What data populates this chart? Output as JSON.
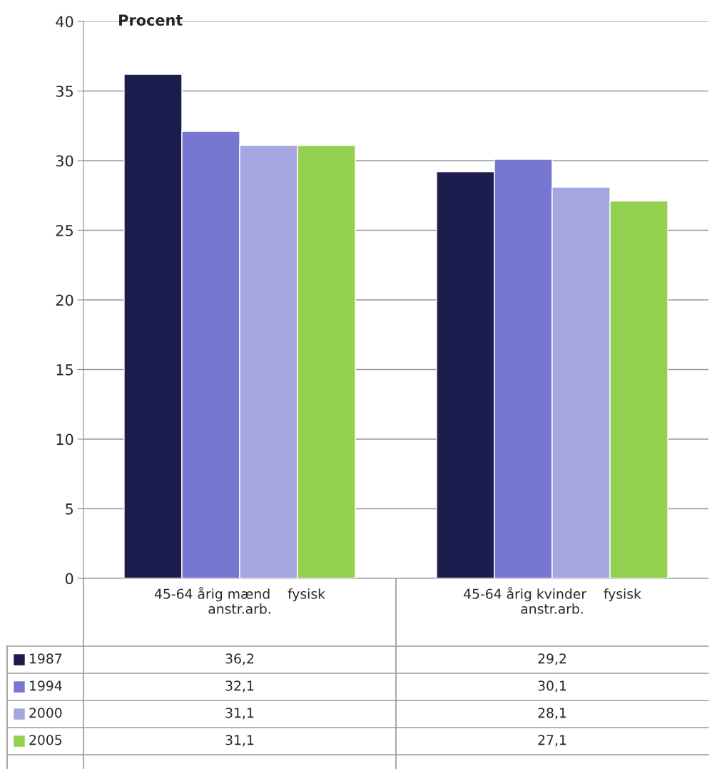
{
  "chart_data": {
    "type": "bar",
    "ylabel": "Procent",
    "categories": [
      "45-64 årig mænd    fysisk\nanstr.arb.",
      "45-64 årig kvinder    fysisk\nanstr.arb."
    ],
    "series": [
      {
        "name": "1987",
        "color": "#1c1c4e",
        "values": [
          36.2,
          29.2
        ],
        "value_labels": [
          "36,2",
          "29,2"
        ]
      },
      {
        "name": "1994",
        "color": "#7777d1",
        "values": [
          32.1,
          30.1
        ],
        "value_labels": [
          "32,1",
          "30,1"
        ]
      },
      {
        "name": "2000",
        "color": "#a5a5e0",
        "values": [
          31.1,
          28.1
        ],
        "value_labels": [
          "31,1",
          "28,1"
        ]
      },
      {
        "name": "2005",
        "color": "#94d050",
        "values": [
          31.1,
          27.1
        ],
        "value_labels": [
          "31,1",
          "27,1"
        ]
      }
    ],
    "ylim": [
      0,
      40
    ],
    "yticks": [
      0,
      5,
      10,
      15,
      20,
      25,
      30,
      35,
      40
    ],
    "grid": "y",
    "legend": "bottom"
  }
}
